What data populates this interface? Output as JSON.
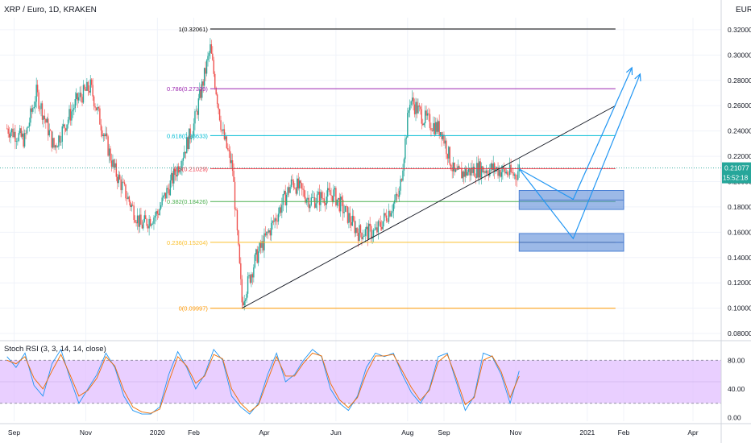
{
  "header": {
    "symbol_title": "XRP / Euro, 1D, KRAKEN",
    "currency": "EUR"
  },
  "price_axis": {
    "labels": [
      "0.08000",
      "0.10000",
      "0.12000",
      "0.14000",
      "0.16000",
      "0.18000",
      "0.20000",
      "0.22000",
      "0.24000",
      "0.26000",
      "0.28000",
      "0.30000",
      "0.32000"
    ]
  },
  "last_price": {
    "value": "0.21077",
    "countdown": "15:52:18",
    "color": "#26a69a"
  },
  "stoch": {
    "title": "Stoch RSI (3, 3, 14, 14, close)",
    "labels": [
      "0.00",
      "40.00",
      "80.00"
    ],
    "band_color": "#e1bfff",
    "k_color": "#2196f3",
    "d_color": "#ef6c00"
  },
  "time_axis": {
    "labels": [
      "Sep",
      "Nov",
      "2020",
      "Feb",
      "Apr",
      "Jun",
      "Aug",
      "Sep",
      "Nov",
      "2021",
      "Feb",
      "Apr"
    ]
  },
  "chart_data": [
    {
      "type": "candlestick",
      "title": "XRP / Euro, 1D, KRAKEN",
      "ylim": [
        0.08,
        0.33
      ],
      "ohlc_sample": [
        {
          "x": "2019-08-26",
          "close": 0.242
        },
        {
          "x": "2019-09-10",
          "close": 0.233
        },
        {
          "x": "2019-09-20",
          "close": 0.27
        },
        {
          "x": "2019-10-05",
          "close": 0.227
        },
        {
          "x": "2019-10-25",
          "close": 0.265
        },
        {
          "x": "2019-11-05",
          "close": 0.275
        },
        {
          "x": "2019-11-25",
          "close": 0.21
        },
        {
          "x": "2019-12-18",
          "close": 0.165
        },
        {
          "x": "2020-01-01",
          "close": 0.175
        },
        {
          "x": "2020-01-20",
          "close": 0.215
        },
        {
          "x": "2020-02-01",
          "close": 0.245
        },
        {
          "x": "2020-02-15",
          "close": 0.305
        },
        {
          "x": "2020-02-25",
          "close": 0.24
        },
        {
          "x": "2020-03-05",
          "close": 0.21
        },
        {
          "x": "2020-03-13",
          "close": 0.105
        },
        {
          "x": "2020-03-25",
          "close": 0.14
        },
        {
          "x": "2020-04-10",
          "close": 0.17
        },
        {
          "x": "2020-04-25",
          "close": 0.2
        },
        {
          "x": "2020-05-10",
          "close": 0.185
        },
        {
          "x": "2020-05-30",
          "close": 0.19
        },
        {
          "x": "2020-06-20",
          "close": 0.16
        },
        {
          "x": "2020-07-05",
          "close": 0.16
        },
        {
          "x": "2020-07-25",
          "close": 0.19
        },
        {
          "x": "2020-08-03",
          "close": 0.265
        },
        {
          "x": "2020-08-15",
          "close": 0.25
        },
        {
          "x": "2020-08-30",
          "close": 0.24
        },
        {
          "x": "2020-09-10",
          "close": 0.205
        },
        {
          "x": "2020-09-30",
          "close": 0.21
        },
        {
          "x": "2020-10-15",
          "close": 0.21
        },
        {
          "x": "2020-11-01",
          "close": 0.205
        },
        {
          "x": "2020-11-04",
          "close": 0.2108
        }
      ],
      "fib_levels": [
        {
          "label": "1(0.32061)",
          "value": 0.32061,
          "color": "#000000"
        },
        {
          "label": "0.786(0.27339)",
          "value": 0.27339,
          "color": "#9c27b0"
        },
        {
          "label": "0.618(0.23633)",
          "value": 0.23633,
          "color": "#00bcd4"
        },
        {
          "label": "0.5(0.21029)",
          "value": 0.21029,
          "color": "#f23645"
        },
        {
          "label": "0.382(0.18426)",
          "value": 0.18426,
          "color": "#4caf50"
        },
        {
          "label": "0.236(0.15204)",
          "value": 0.15204,
          "color": "#fbc02d"
        },
        {
          "label": "0(0.09997)",
          "value": 0.09997,
          "color": "#ff9800"
        }
      ],
      "trendline": {
        "from": {
          "x": "2020-03-13",
          "y": 0.1
        },
        "to": {
          "x": "2021-01-25",
          "y": 0.26
        }
      },
      "target_boxes": [
        {
          "y_low": 0.178,
          "y_high": 0.193,
          "color": "#4a7fd4"
        },
        {
          "y_low": 0.145,
          "y_high": 0.159,
          "color": "#4a7fd4"
        }
      ],
      "projections": [
        {
          "points": [
            {
              "x": "2020-11-04",
              "y": 0.21
            },
            {
              "x": "2020-12-20",
              "y": 0.186
            },
            {
              "x": "2021-02-08",
              "y": 0.29
            }
          ],
          "color": "#2196f3"
        },
        {
          "points": [
            {
              "x": "2020-11-04",
              "y": 0.21
            },
            {
              "x": "2020-12-20",
              "y": 0.155
            },
            {
              "x": "2021-02-15",
              "y": 0.285
            }
          ],
          "color": "#2196f3"
        }
      ]
    },
    {
      "type": "line",
      "title": "Stoch RSI (3, 3, 14, 14, close)",
      "ylim": [
        -5,
        105
      ],
      "band": [
        20,
        80
      ],
      "series": [
        {
          "name": "K",
          "values": [
            85,
            70,
            90,
            45,
            30,
            75,
            95,
            55,
            20,
            40,
            60,
            90,
            70,
            30,
            10,
            5,
            5,
            15,
            60,
            92,
            70,
            40,
            60,
            95,
            80,
            30,
            15,
            5,
            20,
            60,
            90,
            50,
            60,
            80,
            95,
            85,
            40,
            20,
            10,
            30,
            70,
            90,
            85,
            90,
            60,
            35,
            20,
            40,
            85,
            90,
            50,
            10,
            30,
            90,
            85,
            60,
            20,
            65
          ]
        },
        {
          "name": "D",
          "values": [
            80,
            75,
            85,
            55,
            40,
            65,
            88,
            60,
            30,
            38,
            55,
            85,
            72,
            38,
            15,
            8,
            6,
            12,
            50,
            85,
            72,
            48,
            58,
            88,
            82,
            40,
            20,
            8,
            18,
            52,
            85,
            58,
            58,
            76,
            90,
            86,
            48,
            25,
            14,
            28,
            62,
            86,
            86,
            88,
            65,
            42,
            24,
            38,
            78,
            88,
            55,
            18,
            28,
            80,
            86,
            64,
            28,
            58
          ]
        }
      ]
    }
  ]
}
